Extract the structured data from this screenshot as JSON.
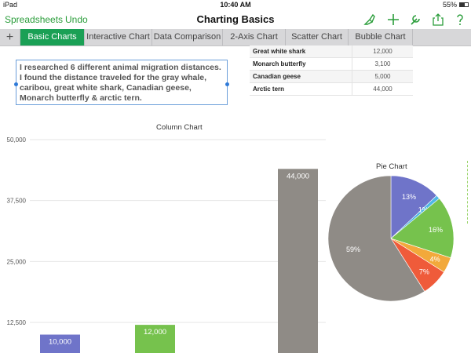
{
  "status_bar": {
    "carrier": "iPad",
    "time": "10:40 AM",
    "battery": "55%"
  },
  "toolbar": {
    "back_label": "Spreadsheets",
    "undo_label": "Undo",
    "title": "Charting Basics",
    "icons": [
      "brush-icon",
      "plus-icon",
      "wrench-icon",
      "share-icon",
      "help-icon"
    ]
  },
  "tabs": [
    {
      "label": "Basic Charts",
      "active": true
    },
    {
      "label": "Interactive Chart",
      "active": false
    },
    {
      "label": "Data Comparison",
      "active": false
    },
    {
      "label": "2-Axis Chart",
      "active": false
    },
    {
      "label": "Scatter Chart",
      "active": false
    },
    {
      "label": "Bubble Chart",
      "active": false
    }
  ],
  "textbox": {
    "text": "I researched 6 different animal migration distances. I found the distance traveled for the gray whale, caribou, great white shark, Canadian geese, Monarch butterfly & arctic tern."
  },
  "table": {
    "rows": [
      {
        "name": "Great white shark",
        "value": "12,000"
      },
      {
        "name": "Monarch butterfly",
        "value": "3,100"
      },
      {
        "name": "Canadian geese",
        "value": "5,000"
      },
      {
        "name": "Arctic tern",
        "value": "44,000"
      }
    ]
  },
  "colors": {
    "accent": "#1aa055",
    "toolbar_green": "#2a9d3a"
  },
  "chart_data": [
    {
      "type": "bar",
      "title": "Column Chart",
      "y_ticks": [
        "50,000",
        "37,500",
        "25,000",
        "12,500"
      ],
      "ylim": [
        0,
        50000
      ],
      "grid": true,
      "bars": [
        {
          "value": 10000,
          "label": "10,000",
          "color": "#6f74c9"
        },
        {
          "value": 12000,
          "label": "12,000",
          "color": "#76c24d"
        },
        {
          "value": 44000,
          "label": "44,000",
          "color": "#8f8b86"
        }
      ]
    },
    {
      "type": "pie",
      "title": "Pie Chart",
      "slices": [
        {
          "percent": 13,
          "label": "13%",
          "color": "#6f74c9"
        },
        {
          "percent": 1,
          "label": "1%",
          "color": "#4fb7e6"
        },
        {
          "percent": 16,
          "label": "16%",
          "color": "#76c24d"
        },
        {
          "percent": 4,
          "label": "4%",
          "color": "#f2a93b"
        },
        {
          "percent": 7,
          "label": "7%",
          "color": "#ef5b3a"
        },
        {
          "percent": 59,
          "label": "59%",
          "color": "#8f8b86"
        }
      ]
    }
  ]
}
